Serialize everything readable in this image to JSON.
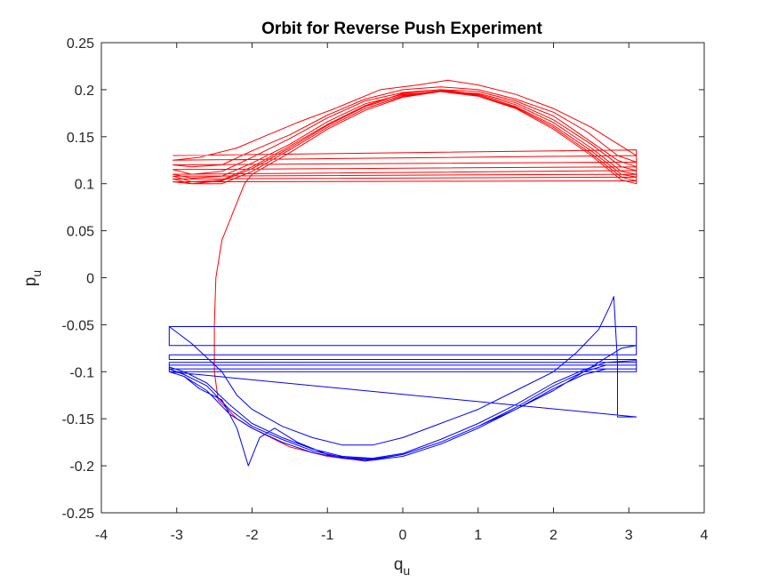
{
  "chart_data": {
    "type": "line",
    "title": "Orbit for Reverse Push Experiment",
    "xlabel": {
      "base": "q",
      "sub": "u"
    },
    "ylabel": {
      "base": "p",
      "sub": "u"
    },
    "xlim": [
      -4,
      4
    ],
    "ylim": [
      -0.25,
      0.25
    ],
    "xticks": [
      -4,
      -3,
      -2,
      -1,
      0,
      1,
      2,
      3,
      4
    ],
    "xtick_labels": [
      "-4",
      "-3",
      "-2",
      "-1",
      "0",
      "1",
      "2",
      "3",
      "4"
    ],
    "yticks": [
      -0.25,
      -0.2,
      -0.15,
      -0.1,
      -0.05,
      0,
      0.05,
      0.1,
      0.15,
      0.2,
      0.25
    ],
    "ytick_labels": [
      "-0.25",
      "-0.2",
      "-0.15",
      "-0.1",
      "-0.05",
      "0",
      "0.05",
      "0.1",
      "0.15",
      "0.2",
      "0.25"
    ],
    "grid": false,
    "colors": {
      "upper": "#ff0000",
      "lower": "#0000ff",
      "axes": "#262626"
    },
    "series": [
      {
        "name": "upper-orbit",
        "color": "#ff0000",
        "points": [
          [
            -3.05,
            0.13
          ],
          [
            3.1,
            0.136
          ],
          [
            3.1,
            0.13
          ],
          [
            2.9,
            0.14
          ],
          [
            2.5,
            0.16
          ],
          [
            2.0,
            0.18
          ],
          [
            1.5,
            0.195
          ],
          [
            1.0,
            0.205
          ],
          [
            0.6,
            0.21
          ],
          [
            0.2,
            0.205
          ],
          [
            -0.3,
            0.2
          ],
          [
            -0.9,
            0.18
          ],
          [
            -1.4,
            0.165
          ],
          [
            -1.85,
            0.15
          ],
          [
            -2.2,
            0.138
          ],
          [
            -2.7,
            0.128
          ],
          [
            -3.05,
            0.125
          ],
          [
            3.1,
            0.13
          ],
          [
            3.1,
            0.123
          ],
          [
            2.85,
            0.13
          ],
          [
            2.45,
            0.155
          ],
          [
            2.0,
            0.176
          ],
          [
            1.5,
            0.19
          ],
          [
            1.0,
            0.2
          ],
          [
            0.5,
            0.203
          ],
          [
            0.0,
            0.2
          ],
          [
            -0.5,
            0.19
          ],
          [
            -1.0,
            0.173
          ],
          [
            -1.5,
            0.152
          ],
          [
            -2.0,
            0.135
          ],
          [
            -2.4,
            0.12
          ],
          [
            -2.8,
            0.118
          ],
          [
            -3.05,
            0.12
          ],
          [
            3.1,
            0.123
          ],
          [
            3.1,
            0.118
          ],
          [
            2.85,
            0.125
          ],
          [
            2.4,
            0.15
          ],
          [
            2.0,
            0.172
          ],
          [
            1.5,
            0.188
          ],
          [
            1.0,
            0.198
          ],
          [
            0.5,
            0.2
          ],
          [
            0.0,
            0.197
          ],
          [
            -0.5,
            0.188
          ],
          [
            -1.0,
            0.17
          ],
          [
            -1.5,
            0.148
          ],
          [
            -2.0,
            0.128
          ],
          [
            -2.4,
            0.113
          ],
          [
            -2.8,
            0.11
          ],
          [
            -3.05,
            0.115
          ],
          [
            3.1,
            0.118
          ],
          [
            3.1,
            0.114
          ],
          [
            2.9,
            0.118
          ],
          [
            2.5,
            0.142
          ],
          [
            2.0,
            0.168
          ],
          [
            1.5,
            0.186
          ],
          [
            1.0,
            0.196
          ],
          [
            0.5,
            0.198
          ],
          [
            0.0,
            0.195
          ],
          [
            -0.5,
            0.185
          ],
          [
            -1.0,
            0.166
          ],
          [
            -1.5,
            0.142
          ],
          [
            -2.0,
            0.122
          ],
          [
            -2.4,
            0.108
          ],
          [
            -2.8,
            0.106
          ],
          [
            -3.05,
            0.11
          ],
          [
            3.1,
            0.114
          ],
          [
            3.1,
            0.11
          ],
          [
            2.9,
            0.113
          ],
          [
            2.5,
            0.138
          ],
          [
            2.0,
            0.165
          ],
          [
            1.5,
            0.184
          ],
          [
            1.0,
            0.195
          ],
          [
            0.5,
            0.2
          ],
          [
            0.0,
            0.196
          ],
          [
            -0.5,
            0.183
          ],
          [
            -1.0,
            0.163
          ],
          [
            -1.5,
            0.14
          ],
          [
            -2.0,
            0.118
          ],
          [
            -2.4,
            0.104
          ],
          [
            -2.8,
            0.102
          ],
          [
            -3.05,
            0.108
          ],
          [
            3.1,
            0.11
          ],
          [
            3.1,
            0.107
          ],
          [
            2.9,
            0.11
          ],
          [
            2.5,
            0.135
          ],
          [
            2.0,
            0.162
          ],
          [
            1.5,
            0.182
          ],
          [
            1.0,
            0.194
          ],
          [
            0.5,
            0.199
          ],
          [
            0.0,
            0.194
          ],
          [
            -0.5,
            0.182
          ],
          [
            -1.0,
            0.162
          ],
          [
            -1.5,
            0.138
          ],
          [
            -2.0,
            0.116
          ],
          [
            -2.4,
            0.103
          ],
          [
            -2.8,
            0.1
          ],
          [
            -3.05,
            0.105
          ],
          [
            3.1,
            0.107
          ],
          [
            3.1,
            0.103
          ],
          [
            2.9,
            0.107
          ],
          [
            2.5,
            0.132
          ],
          [
            2.0,
            0.16
          ],
          [
            1.5,
            0.181
          ],
          [
            1.0,
            0.193
          ],
          [
            0.5,
            0.198
          ],
          [
            0.0,
            0.193
          ],
          [
            -0.5,
            0.18
          ],
          [
            -1.0,
            0.16
          ],
          [
            -1.5,
            0.136
          ],
          [
            -2.0,
            0.113
          ],
          [
            -2.4,
            0.1
          ],
          [
            -2.8,
            0.1
          ],
          [
            -3.05,
            0.102
          ],
          [
            3.1,
            0.103
          ],
          [
            3.1,
            0.1
          ],
          [
            2.9,
            0.104
          ],
          [
            2.5,
            0.13
          ],
          [
            2.0,
            0.158
          ],
          [
            1.5,
            0.18
          ],
          [
            1.0,
            0.193
          ],
          [
            0.5,
            0.198
          ],
          [
            0.0,
            0.192
          ],
          [
            -0.5,
            0.178
          ],
          [
            -1.0,
            0.158
          ],
          [
            -1.5,
            0.133
          ],
          [
            -2.0,
            0.11
          ],
          [
            -2.1,
            0.1
          ],
          [
            -2.25,
            0.07
          ],
          [
            -2.4,
            0.04
          ],
          [
            -2.48,
            0.0
          ],
          [
            -2.5,
            -0.05
          ],
          [
            -2.5,
            -0.1
          ],
          [
            -2.45,
            -0.13
          ],
          [
            -2.2,
            -0.15
          ],
          [
            -2.0,
            -0.16
          ],
          [
            -1.5,
            -0.18
          ],
          [
            -1.0,
            -0.19
          ],
          [
            -0.5,
            -0.195
          ],
          [
            -0.3,
            -0.193
          ]
        ]
      },
      {
        "name": "lower-orbit",
        "color": "#0000ff",
        "points": [
          [
            -3.1,
            -0.052
          ],
          [
            -3.0,
            -0.058
          ],
          [
            -2.8,
            -0.07
          ],
          [
            -2.6,
            -0.085
          ],
          [
            -2.4,
            -0.1
          ],
          [
            -2.2,
            -0.125
          ],
          [
            -2.0,
            -0.14
          ],
          [
            -1.6,
            -0.158
          ],
          [
            -1.2,
            -0.17
          ],
          [
            -0.8,
            -0.178
          ],
          [
            -0.4,
            -0.178
          ],
          [
            0.0,
            -0.17
          ],
          [
            0.5,
            -0.155
          ],
          [
            1.0,
            -0.14
          ],
          [
            1.5,
            -0.12
          ],
          [
            2.0,
            -0.1
          ],
          [
            2.3,
            -0.08
          ],
          [
            2.6,
            -0.055
          ],
          [
            2.75,
            -0.03
          ],
          [
            2.8,
            -0.02
          ],
          [
            2.85,
            -0.09
          ],
          [
            2.85,
            -0.148
          ],
          [
            3.1,
            -0.148
          ],
          [
            -3.1,
            -0.1
          ],
          [
            -2.9,
            -0.105
          ],
          [
            -2.7,
            -0.118
          ],
          [
            -2.4,
            -0.13
          ],
          [
            -2.2,
            -0.16
          ],
          [
            -2.05,
            -0.2
          ],
          [
            -1.9,
            -0.17
          ],
          [
            -1.7,
            -0.16
          ],
          [
            -1.4,
            -0.175
          ],
          [
            -1.0,
            -0.188
          ],
          [
            -0.5,
            -0.195
          ],
          [
            0.0,
            -0.188
          ],
          [
            0.5,
            -0.175
          ],
          [
            1.0,
            -0.158
          ],
          [
            1.5,
            -0.14
          ],
          [
            2.0,
            -0.12
          ],
          [
            2.4,
            -0.1
          ],
          [
            2.7,
            -0.085
          ],
          [
            2.9,
            -0.075
          ],
          [
            3.1,
            -0.072
          ],
          [
            3.1,
            -0.052
          ],
          [
            -3.1,
            -0.052
          ],
          [
            -3.1,
            -0.072
          ],
          [
            3.1,
            -0.072
          ],
          [
            3.1,
            -0.082
          ],
          [
            -3.1,
            -0.082
          ],
          [
            -3.1,
            -0.087
          ],
          [
            3.1,
            -0.087
          ],
          [
            3.1,
            -0.09
          ],
          [
            -3.1,
            -0.09
          ],
          [
            -3.1,
            -0.095
          ],
          [
            -2.9,
            -0.1
          ],
          [
            -2.6,
            -0.112
          ],
          [
            -2.3,
            -0.135
          ],
          [
            -2.0,
            -0.155
          ],
          [
            -1.6,
            -0.17
          ],
          [
            -1.2,
            -0.182
          ],
          [
            -0.8,
            -0.19
          ],
          [
            -0.4,
            -0.192
          ],
          [
            0.0,
            -0.187
          ],
          [
            0.5,
            -0.172
          ],
          [
            1.0,
            -0.155
          ],
          [
            1.5,
            -0.135
          ],
          [
            2.0,
            -0.112
          ],
          [
            2.4,
            -0.098
          ],
          [
            2.7,
            -0.09
          ],
          [
            3.1,
            -0.088
          ],
          [
            3.1,
            -0.093
          ],
          [
            -3.1,
            -0.093
          ],
          [
            -3.1,
            -0.097
          ],
          [
            -2.9,
            -0.103
          ],
          [
            -2.6,
            -0.115
          ],
          [
            -2.3,
            -0.14
          ],
          [
            -2.0,
            -0.158
          ],
          [
            -1.6,
            -0.172
          ],
          [
            -1.2,
            -0.184
          ],
          [
            -0.8,
            -0.191
          ],
          [
            -0.4,
            -0.193
          ],
          [
            0.0,
            -0.188
          ],
          [
            0.5,
            -0.175
          ],
          [
            1.0,
            -0.158
          ],
          [
            1.5,
            -0.138
          ],
          [
            2.0,
            -0.115
          ],
          [
            2.4,
            -0.1
          ],
          [
            2.7,
            -0.093
          ],
          [
            3.1,
            -0.093
          ],
          [
            3.1,
            -0.097
          ],
          [
            -3.1,
            -0.097
          ],
          [
            -3.1,
            -0.1
          ],
          [
            -2.9,
            -0.105
          ],
          [
            -2.6,
            -0.12
          ],
          [
            -2.3,
            -0.145
          ],
          [
            -2.0,
            -0.16
          ],
          [
            -1.6,
            -0.175
          ],
          [
            -1.2,
            -0.186
          ],
          [
            -0.8,
            -0.192
          ],
          [
            -0.4,
            -0.194
          ],
          [
            0.0,
            -0.19
          ],
          [
            0.5,
            -0.177
          ],
          [
            1.0,
            -0.16
          ],
          [
            1.5,
            -0.14
          ],
          [
            2.0,
            -0.118
          ],
          [
            2.4,
            -0.103
          ],
          [
            2.7,
            -0.097
          ],
          [
            3.1,
            -0.097
          ],
          [
            3.1,
            -0.1
          ],
          [
            -3.1,
            -0.1
          ]
        ]
      }
    ]
  }
}
